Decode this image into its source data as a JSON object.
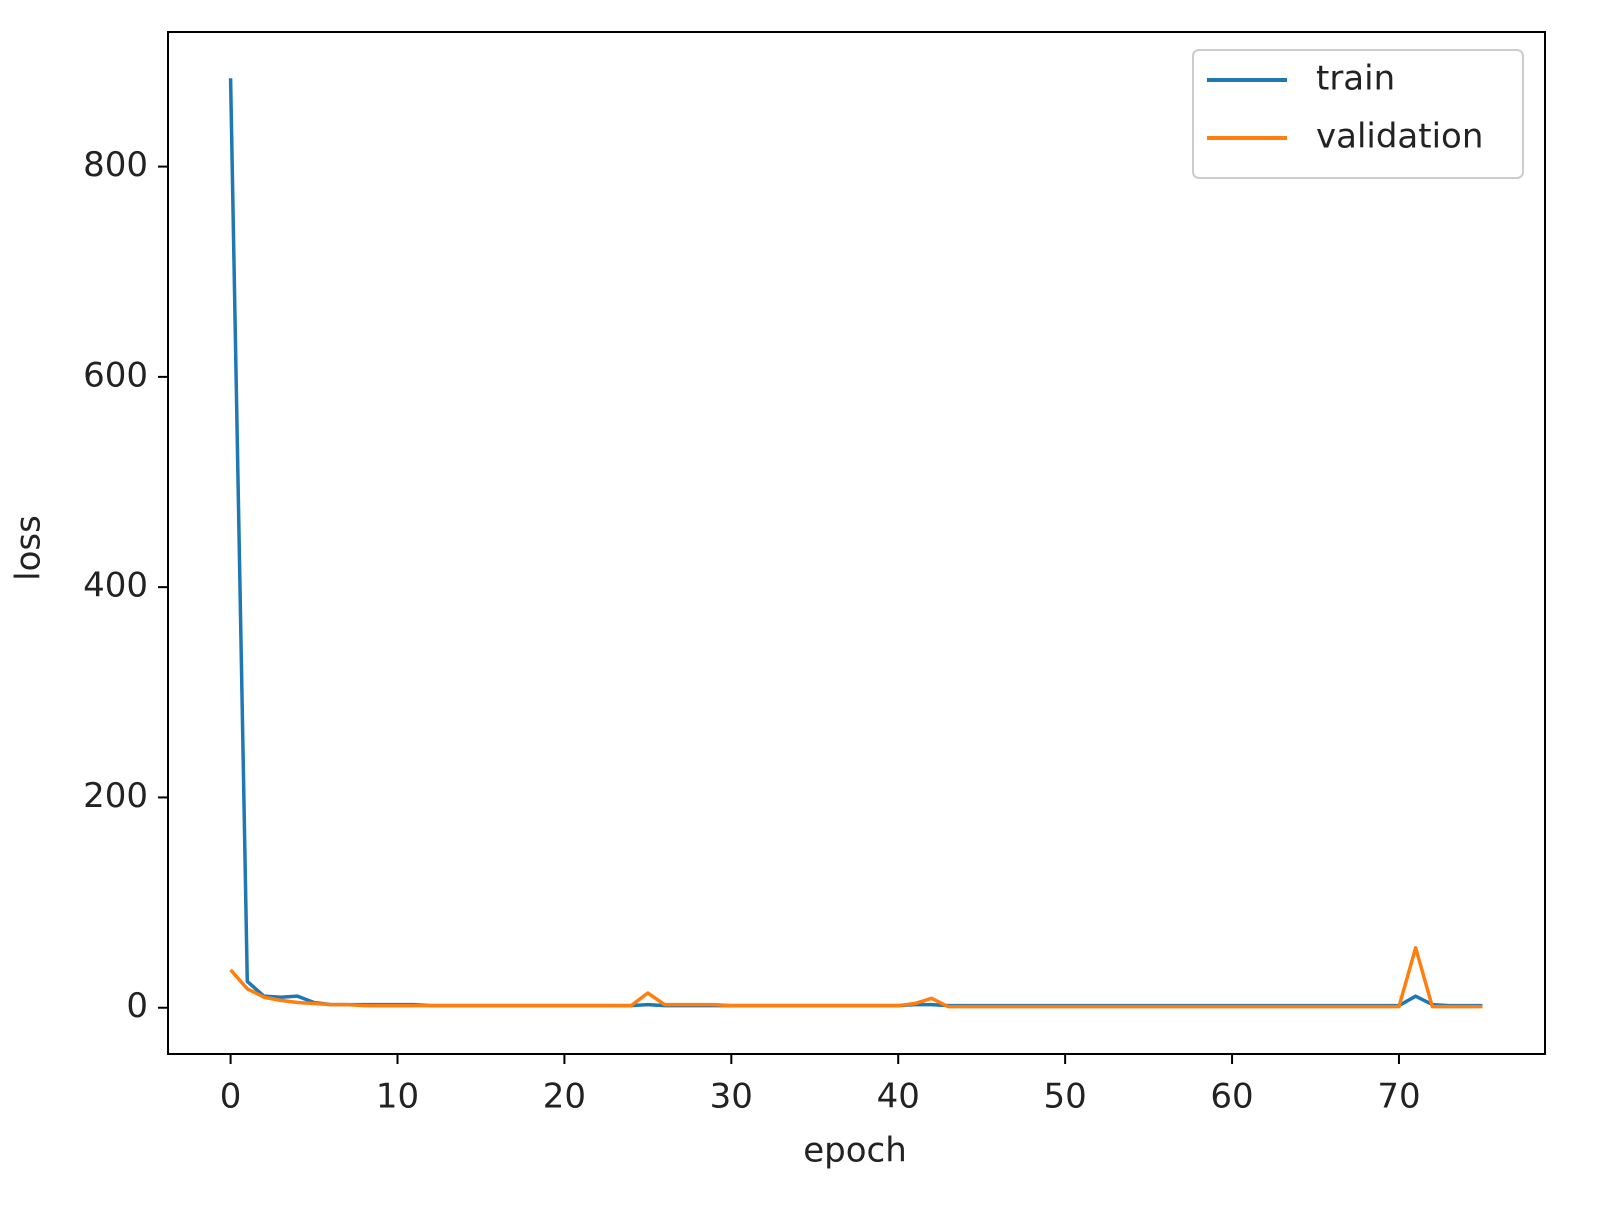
{
  "chart_data": {
    "type": "line",
    "xlabel": "epoch",
    "ylabel": "loss",
    "x": [
      0,
      1,
      2,
      3,
      4,
      5,
      6,
      7,
      8,
      9,
      10,
      11,
      12,
      13,
      14,
      15,
      16,
      17,
      18,
      19,
      20,
      21,
      22,
      23,
      24,
      25,
      26,
      27,
      28,
      29,
      30,
      31,
      32,
      33,
      34,
      35,
      36,
      37,
      38,
      39,
      40,
      41,
      42,
      43,
      44,
      45,
      46,
      47,
      48,
      49,
      50,
      51,
      52,
      53,
      54,
      55,
      56,
      57,
      58,
      59,
      60,
      61,
      62,
      63,
      64,
      65,
      66,
      67,
      68,
      69,
      70,
      71,
      72,
      73,
      74,
      75
    ],
    "series": [
      {
        "name": "train",
        "color": "#1f77b4",
        "values": [
          884,
          25,
          11,
          10,
          11,
          5,
          3,
          3,
          3,
          3,
          3,
          3,
          2,
          2,
          2,
          2,
          2,
          2,
          2,
          2,
          2,
          2,
          2,
          2,
          2,
          3,
          2,
          2,
          2,
          2,
          2,
          2,
          2,
          2,
          2,
          2,
          2,
          2,
          2,
          2,
          2,
          3,
          3,
          2,
          2,
          2,
          2,
          2,
          2,
          2,
          2,
          2,
          2,
          2,
          2,
          2,
          2,
          2,
          2,
          2,
          2,
          2,
          2,
          2,
          2,
          2,
          2,
          2,
          2,
          2,
          2,
          11,
          3,
          2,
          2,
          2
        ]
      },
      {
        "name": "validation",
        "color": "#ff7f0e",
        "values": [
          36,
          18,
          10,
          7,
          5,
          4,
          3,
          3,
          2,
          2,
          2,
          2,
          2,
          2,
          2,
          2,
          2,
          2,
          2,
          2,
          2,
          2,
          2,
          2,
          2,
          14,
          3,
          3,
          3,
          3,
          2,
          2,
          2,
          2,
          2,
          2,
          2,
          2,
          2,
          2,
          2,
          4,
          9,
          1,
          1,
          1,
          1,
          1,
          1,
          1,
          1,
          1,
          1,
          1,
          1,
          1,
          1,
          1,
          1,
          1,
          1,
          1,
          1,
          1,
          1,
          1,
          1,
          1,
          1,
          1,
          1,
          57,
          1,
          1,
          1,
          1
        ]
      }
    ],
    "xlim": [
      -3.75,
      78.75
    ],
    "xticks": [
      0,
      10,
      20,
      30,
      40,
      50,
      60,
      70
    ],
    "ylim": [
      -44,
      928
    ],
    "yticks": [
      0,
      200,
      400,
      600,
      800
    ],
    "legend": "upper right"
  }
}
